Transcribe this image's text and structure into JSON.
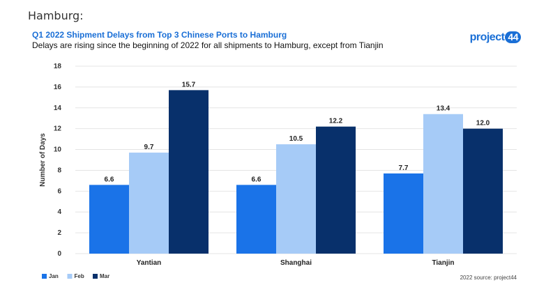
{
  "page": {
    "heading": "Hamburg:"
  },
  "chart": {
    "title": "Q1 2022 Shipment Delays from Top 3 Chinese Ports to Hamburg",
    "subtitle": "Delays are rising since the beginning of 2022 for all shipments to Hamburg, except from Tianjin",
    "logo_text": "project",
    "logo_num": "44",
    "source": "2022 source: project44"
  },
  "chart_data": {
    "type": "bar",
    "categories": [
      "Yantian",
      "Shanghai",
      "Tianjin"
    ],
    "series": [
      {
        "name": "Jan",
        "values": [
          6.6,
          6.6,
          7.7
        ],
        "color": "#1a73e8"
      },
      {
        "name": "Feb",
        "values": [
          9.7,
          10.5,
          13.4
        ],
        "color": "#a6cbf7"
      },
      {
        "name": "Mar",
        "values": [
          15.7,
          12.2,
          12.0
        ],
        "color": "#08306b"
      }
    ],
    "ylabel": "Number of Days",
    "xlabel": "",
    "ylim": [
      0,
      18
    ],
    "yticks": [
      0,
      2,
      4,
      6,
      8,
      10,
      12,
      14,
      16,
      18
    ],
    "grid": true,
    "legend": "bottom-left",
    "value_labels": [
      "6.6",
      "6.6",
      "7.7",
      "9.7",
      "10.5",
      "13.4",
      "15.7",
      "12.2",
      "12.0"
    ]
  }
}
